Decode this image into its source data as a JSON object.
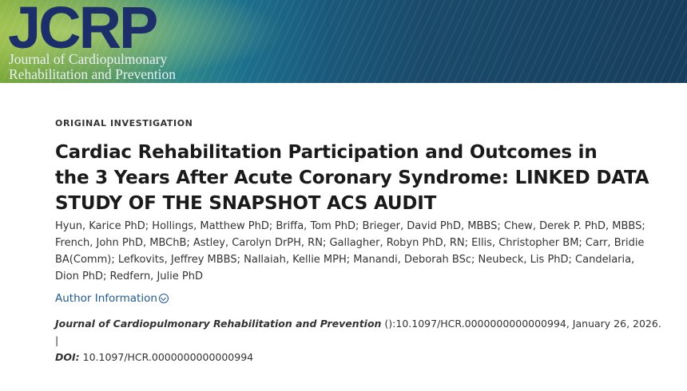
{
  "journal": {
    "logo_text": "JCRP",
    "name_line1": "Journal of Cardiopulmonary",
    "name_line2": "Rehabilitation and Prevention",
    "brand_color": "#1c2f6b"
  },
  "article": {
    "type": "ORIGINAL INVESTIGATION",
    "title_line1": "Cardiac Rehabilitation Participation and Outcomes in",
    "title_line2": "the 3 Years After Acute Coronary Syndrome: LINKED DATA",
    "title_line3": "STUDY OF THE SNAPSHOT ACS AUDIT",
    "authors_line1": "Hyun, Karice PhD; Hollings, Matthew PhD; Briffa, Tom PhD; Brieger, David PhD, MBBS; Chew, Derek P. PhD, MBBS;",
    "authors_line2": "French, John PhD, MBChB; Astley, Carolyn DrPH, RN; Gallagher, Robyn PhD, RN; Ellis, Christopher BM; Carr, Bridie",
    "authors_line3": "BA(Comm); Lefkovits, Jeffrey MBBS; Nallaiah, Kellie MPH; Manandi, Deborah BSc; Neubeck, Lis PhD; Candelaria,",
    "authors_line4": "Dion PhD; Redfern, Julie PhD",
    "author_info_label": "Author Information",
    "citation_journal": "Journal of Cardiopulmonary Rehabilitation and Prevention",
    "citation_rest": " ():10.1097/HCR.0000000000000994, January 26, 2026. |",
    "doi_label": "DOI:",
    "doi_value": " 10.1097/HCR.0000000000000994",
    "link_color": "#1e5a94"
  }
}
